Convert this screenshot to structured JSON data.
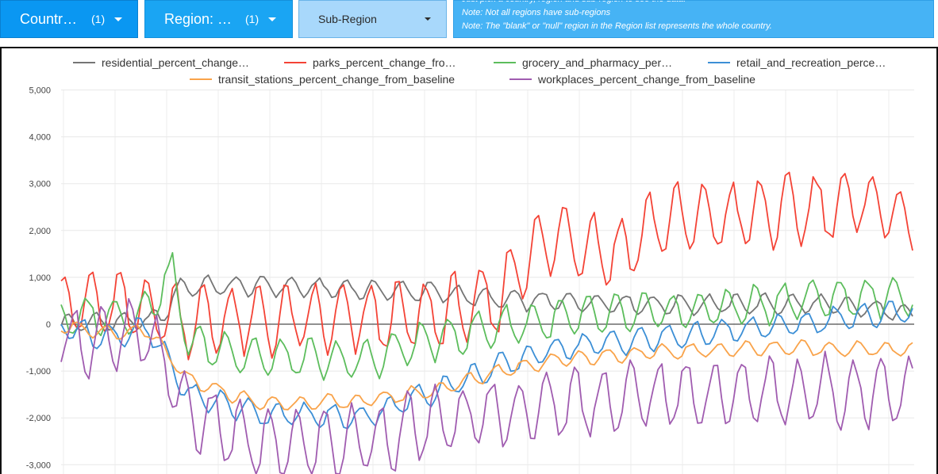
{
  "controls": {
    "country": {
      "label": "Countr…",
      "count": "(1)"
    },
    "region": {
      "label": "Region: …",
      "count": "(1)"
    },
    "subregion": {
      "label": "Sub-Region"
    }
  },
  "notes": [
    "Just pick a country, region and sub-region to see the data.",
    "Note: Not all regions have sub-regions",
    "Note: The \"blank\" or \"null\" region in the Region list represents the whole country."
  ],
  "colors": {
    "residential": "#757575",
    "parks": "#f44336",
    "grocery": "#5cbd5c",
    "retail": "#3c8fd6",
    "transit": "#f9a34a",
    "workplaces": "#a05cb0"
  },
  "chart_data": {
    "type": "line",
    "xlabel": "",
    "ylabel": "",
    "ylim": [
      -3200,
      5000
    ],
    "yticks": [
      5000,
      4000,
      3000,
      2000,
      1000,
      0,
      -1000,
      -2000,
      -3000
    ],
    "ytick_labels": [
      "5,000",
      "4,000",
      "3,000",
      "2,000",
      "1,000",
      "0",
      "-1,000",
      "-2,000",
      "-3,000"
    ],
    "grid": true,
    "legend_position": "top",
    "n_points": 215,
    "series": [
      {
        "key": "residential",
        "name": "residential_percent_change…",
        "color": "#757575",
        "keyframes": [
          [
            0,
            0
          ],
          [
            10,
            60
          ],
          [
            22,
            60
          ],
          [
            26,
            250
          ],
          [
            30,
            800
          ],
          [
            50,
            820
          ],
          [
            95,
            680
          ],
          [
            110,
            520
          ],
          [
            120,
            500
          ],
          [
            150,
            420
          ],
          [
            190,
            430
          ],
          [
            214,
            250
          ]
        ],
        "weekly_amp": 200
      },
      {
        "key": "parks",
        "name": "parks_percent_change_fro…",
        "color": "#f44336",
        "keyframes": [
          [
            0,
            500
          ],
          [
            10,
            400
          ],
          [
            22,
            350
          ],
          [
            30,
            100
          ],
          [
            60,
            100
          ],
          [
            90,
            150
          ],
          [
            110,
            500
          ],
          [
            115,
            1300
          ],
          [
            125,
            1900
          ],
          [
            140,
            1500
          ],
          [
            150,
            2200
          ],
          [
            170,
            2300
          ],
          [
            190,
            2500
          ],
          [
            205,
            2600
          ],
          [
            214,
            2100
          ]
        ],
        "weekly_amp": 700
      },
      {
        "key": "grocery",
        "name": "grocery_and_pharmacy_per…",
        "color": "#5cbd5c",
        "keyframes": [
          [
            0,
            100
          ],
          [
            10,
            200
          ],
          [
            20,
            200
          ],
          [
            28,
            1100
          ],
          [
            32,
            -400
          ],
          [
            50,
            -700
          ],
          [
            75,
            -800
          ],
          [
            90,
            -400
          ],
          [
            110,
            -50
          ],
          [
            130,
            150
          ],
          [
            160,
            300
          ],
          [
            190,
            550
          ],
          [
            214,
            600
          ]
        ],
        "weekly_amp": 400
      },
      {
        "key": "retail",
        "name": "retail_and_recreation_perce…",
        "color": "#3c8fd6",
        "keyframes": [
          [
            0,
            0
          ],
          [
            10,
            -300
          ],
          [
            22,
            -100
          ],
          [
            32,
            -1500
          ],
          [
            50,
            -1900
          ],
          [
            75,
            -2000
          ],
          [
            95,
            -1400
          ],
          [
            110,
            -900
          ],
          [
            125,
            -500
          ],
          [
            150,
            -300
          ],
          [
            180,
            -50
          ],
          [
            205,
            200
          ],
          [
            214,
            300
          ]
        ],
        "weekly_amp": 250
      },
      {
        "key": "transit",
        "name": "transit_stations_percent_change_from_baseline",
        "color": "#f9a34a",
        "keyframes": [
          [
            0,
            0
          ],
          [
            10,
            -200
          ],
          [
            22,
            -150
          ],
          [
            32,
            -1200
          ],
          [
            50,
            -1700
          ],
          [
            75,
            -1650
          ],
          [
            95,
            -1400
          ],
          [
            110,
            -1000
          ],
          [
            125,
            -750
          ],
          [
            150,
            -600
          ],
          [
            180,
            -500
          ],
          [
            214,
            -550
          ]
        ],
        "weekly_amp": 150
      },
      {
        "key": "workplaces",
        "name": "workplaces_percent_change_from_baseline",
        "color": "#a05cb0",
        "keyframes": [
          [
            0,
            -300
          ],
          [
            10,
            -400
          ],
          [
            22,
            -200
          ],
          [
            32,
            -1900
          ],
          [
            50,
            -2600
          ],
          [
            75,
            -2500
          ],
          [
            95,
            -2100
          ],
          [
            110,
            -1900
          ],
          [
            125,
            -1700
          ],
          [
            150,
            -1500
          ],
          [
            180,
            -1450
          ],
          [
            214,
            -1400
          ]
        ],
        "weekly_amp": 700
      }
    ]
  }
}
